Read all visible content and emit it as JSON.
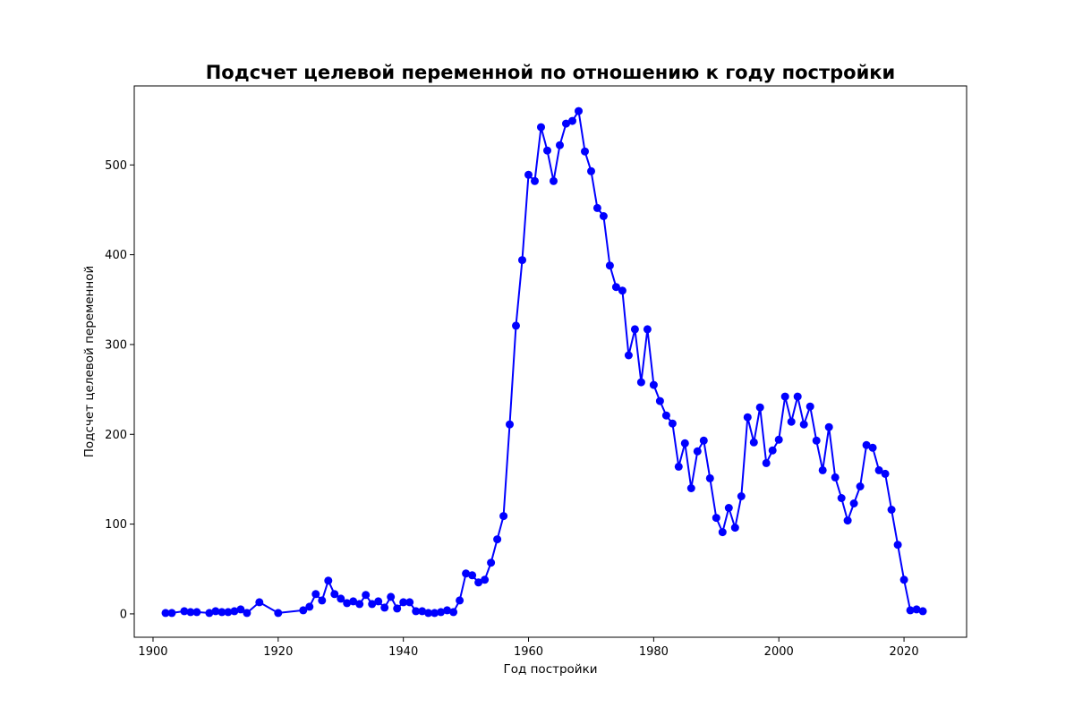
{
  "chart_data": {
    "type": "line",
    "title": "Подсчет целевой переменной по отношению к году постройки",
    "xlabel": "Год постройки",
    "ylabel": "Подсчет целевой переменной",
    "xlim": [
      1897,
      2030
    ],
    "ylim": [
      -26,
      588
    ],
    "xticks": [
      1900,
      1920,
      1940,
      1960,
      1980,
      2000,
      2020
    ],
    "yticks": [
      0,
      100,
      200,
      300,
      400,
      500
    ],
    "grid": false,
    "legend": "none",
    "series_color": "#0000ff",
    "marker": "circle",
    "x": [
      1902,
      1903,
      1905,
      1906,
      1907,
      1909,
      1910,
      1911,
      1912,
      1913,
      1914,
      1915,
      1917,
      1920,
      1924,
      1925,
      1926,
      1927,
      1928,
      1929,
      1930,
      1931,
      1932,
      1933,
      1934,
      1935,
      1936,
      1937,
      1938,
      1939,
      1940,
      1941,
      1942,
      1943,
      1944,
      1945,
      1946,
      1947,
      1948,
      1949,
      1950,
      1951,
      1952,
      1953,
      1954,
      1955,
      1956,
      1957,
      1958,
      1959,
      1960,
      1961,
      1962,
      1963,
      1964,
      1965,
      1966,
      1967,
      1968,
      1969,
      1970,
      1971,
      1972,
      1973,
      1974,
      1975,
      1976,
      1977,
      1978,
      1979,
      1980,
      1981,
      1982,
      1983,
      1984,
      1985,
      1986,
      1987,
      1988,
      1989,
      1990,
      1991,
      1992,
      1993,
      1994,
      1995,
      1996,
      1997,
      1998,
      1999,
      2000,
      2001,
      2002,
      2003,
      2004,
      2005,
      2006,
      2007,
      2008,
      2009,
      2010,
      2011,
      2012,
      2013,
      2014,
      2015,
      2016,
      2017,
      2018,
      2019,
      2020,
      2021,
      2022,
      2023
    ],
    "y": [
      1,
      1,
      3,
      2,
      2,
      1,
      3,
      2,
      2,
      3,
      5,
      1,
      13,
      1,
      4,
      8,
      22,
      15,
      37,
      22,
      17,
      12,
      14,
      11,
      21,
      11,
      14,
      7,
      19,
      6,
      13,
      13,
      3,
      3,
      1,
      1,
      2,
      4,
      2,
      15,
      45,
      43,
      35,
      38,
      57,
      83,
      109,
      211,
      321,
      394,
      489,
      482,
      542,
      516,
      482,
      522,
      546,
      549,
      560,
      515,
      493,
      452,
      443,
      388,
      364,
      360,
      288,
      317,
      258,
      317,
      255,
      237,
      221,
      212,
      164,
      190,
      140,
      181,
      193,
      151,
      107,
      91,
      118,
      96,
      131,
      219,
      191,
      230,
      168,
      182,
      194,
      242,
      214,
      242,
      211,
      231,
      193,
      160,
      208,
      152,
      129,
      104,
      123,
      142,
      188,
      185,
      160,
      156,
      116,
      77,
      38,
      4,
      5,
      3
    ]
  }
}
